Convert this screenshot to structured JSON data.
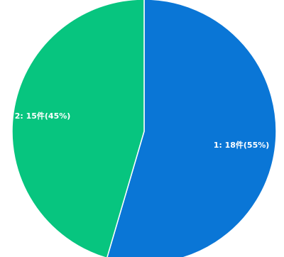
{
  "chart_data": {
    "type": "pie",
    "title": "",
    "start_angle_deg": 0,
    "direction": "clockwise",
    "slices": [
      {
        "id": "1",
        "count": 18,
        "unit": "件",
        "percent": 55,
        "label": "1: 18件(55%)",
        "color": "#0a76d6"
      },
      {
        "id": "2",
        "count": 15,
        "unit": "件",
        "percent": 45,
        "label": "2: 15件(45%)",
        "color": "#07c57f"
      }
    ],
    "slice_border_color": "#ffffff",
    "legend": "none"
  }
}
